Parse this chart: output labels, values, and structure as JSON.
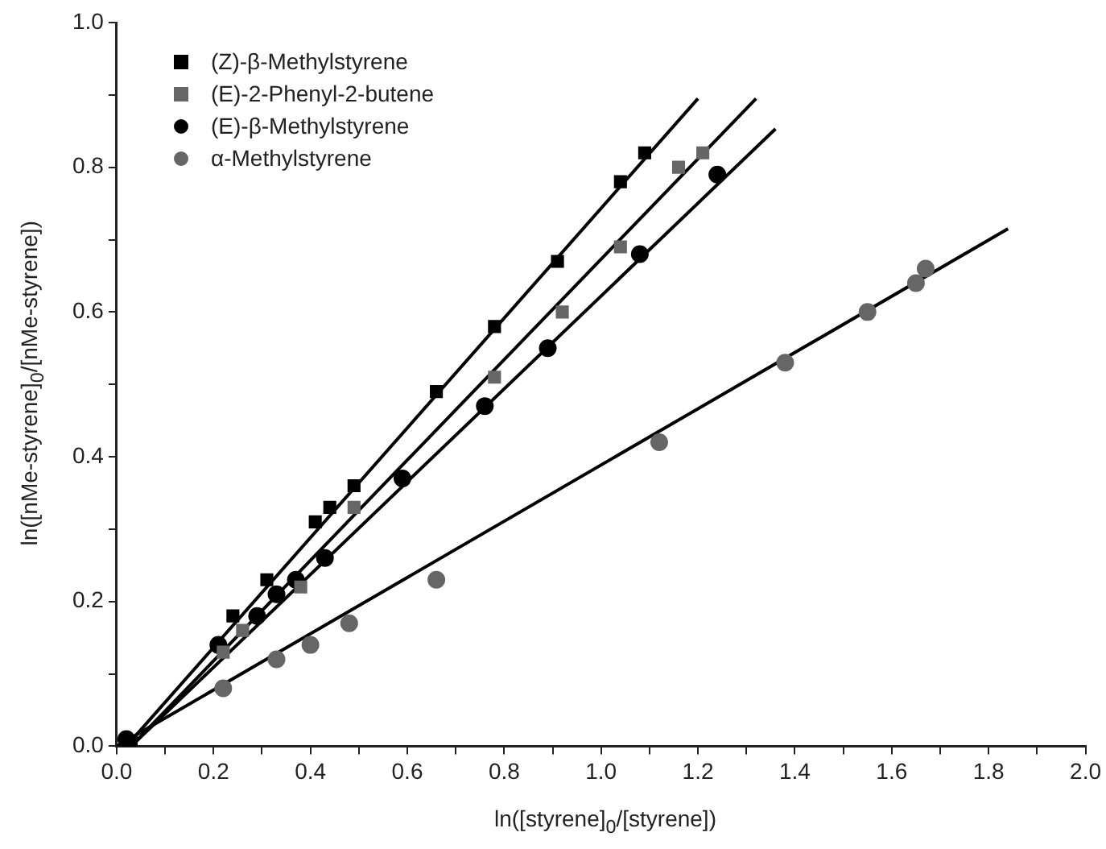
{
  "chart_data": {
    "type": "scatter",
    "xlabel": "ln([styrene]$_{0}$/[styrene])",
    "ylabel": "ln([nMe-styrene]$_{0}$/[nMe-styrene])",
    "xlim": [
      0,
      2.0
    ],
    "ylim": [
      0,
      1.0
    ],
    "xticks": [
      {
        "value": 0,
        "label": "0.0"
      },
      {
        "value": 0.1,
        "label": null
      },
      {
        "value": 0.2,
        "label": "0.2"
      },
      {
        "value": 0.3,
        "label": null
      },
      {
        "value": 0.4,
        "label": "0.4"
      },
      {
        "value": 0.5,
        "label": null
      },
      {
        "value": 0.6,
        "label": "0.6"
      },
      {
        "value": 0.7,
        "label": null
      },
      {
        "value": 0.8,
        "label": "0.8"
      },
      {
        "value": 0.9,
        "label": null
      },
      {
        "value": 1.0,
        "label": "1.0"
      },
      {
        "value": 1.1,
        "label": null
      },
      {
        "value": 1.2,
        "label": "1.2"
      },
      {
        "value": 1.3,
        "label": null
      },
      {
        "value": 1.4,
        "label": "1.4"
      },
      {
        "value": 1.5,
        "label": null
      },
      {
        "value": 1.6,
        "label": "1.6"
      },
      {
        "value": 1.7,
        "label": null
      },
      {
        "value": 1.8,
        "label": "1.8"
      },
      {
        "value": 1.9,
        "label": null
      },
      {
        "value": 2.0,
        "label": "2.0"
      }
    ],
    "yticks": [
      {
        "value": 0,
        "label": "0.0"
      },
      {
        "value": 0.1,
        "label": null
      },
      {
        "value": 0.2,
        "label": "0.2"
      },
      {
        "value": 0.3,
        "label": null
      },
      {
        "value": 0.4,
        "label": "0.4"
      },
      {
        "value": 0.5,
        "label": null
      },
      {
        "value": 0.6,
        "label": "0.6"
      },
      {
        "value": 0.7,
        "label": null
      },
      {
        "value": 0.8,
        "label": "0.8"
      },
      {
        "value": 0.9,
        "label": null
      },
      {
        "value": 1.0,
        "label": "1.0"
      }
    ],
    "grid": false,
    "legend": "top left",
    "series": [
      {
        "name": "(Z)-β-Methylstyrene",
        "color": "#000000",
        "marker": "square",
        "x": [
          0.03,
          0.24,
          0.31,
          0.41,
          0.44,
          0.49,
          0.66,
          0.78,
          0.91,
          1.04,
          1.09
        ],
        "values": [
          0.005,
          0.18,
          0.23,
          0.31,
          0.33,
          0.36,
          0.49,
          0.58,
          0.67,
          0.78,
          0.82
        ]
      },
      {
        "name": "(E)-2-Phenyl-2-butene",
        "color": "#666666",
        "marker": "square",
        "x": [
          0.22,
          0.26,
          0.38,
          0.49,
          0.78,
          0.92,
          1.04,
          1.16,
          1.21
        ],
        "values": [
          0.13,
          0.16,
          0.22,
          0.33,
          0.51,
          0.6,
          0.69,
          0.8,
          0.82
        ]
      },
      {
        "name": "(E)-β-Methylstyrene",
        "color": "#000000",
        "marker": "circle",
        "x": [
          0.02,
          0.21,
          0.29,
          0.33,
          0.37,
          0.43,
          0.59,
          0.76,
          0.89,
          1.08,
          1.24
        ],
        "values": [
          0.01,
          0.14,
          0.18,
          0.21,
          0.23,
          0.26,
          0.37,
          0.47,
          0.55,
          0.68,
          0.79
        ]
      },
      {
        "name": "α-Methylstyrene",
        "color": "#666666",
        "marker": "circle",
        "x": [
          0.22,
          0.33,
          0.4,
          0.48,
          0.66,
          1.12,
          1.38,
          1.55,
          1.65,
          1.67
        ],
        "values": [
          0.08,
          0.12,
          0.14,
          0.17,
          0.23,
          0.42,
          0.53,
          0.6,
          0.64,
          0.66
        ]
      },
      {
        "type": "line",
        "color": "#000000",
        "marker": "none",
        "x": [
          0.02,
          1.2
        ],
        "values": [
          0,
          0.895
        ]
      },
      {
        "type": "line",
        "color": "#000000",
        "marker": "none",
        "x": [
          0.03,
          1.32
        ],
        "values": [
          0,
          0.895
        ]
      },
      {
        "type": "line",
        "color": "#000000",
        "marker": "none",
        "x": [
          0.03,
          1.36
        ],
        "values": [
          0,
          0.853
        ]
      },
      {
        "type": "line",
        "color": "#000000",
        "marker": "none",
        "x": [
          0,
          1.84
        ],
        "values": [
          0,
          0.715
        ]
      }
    ]
  }
}
